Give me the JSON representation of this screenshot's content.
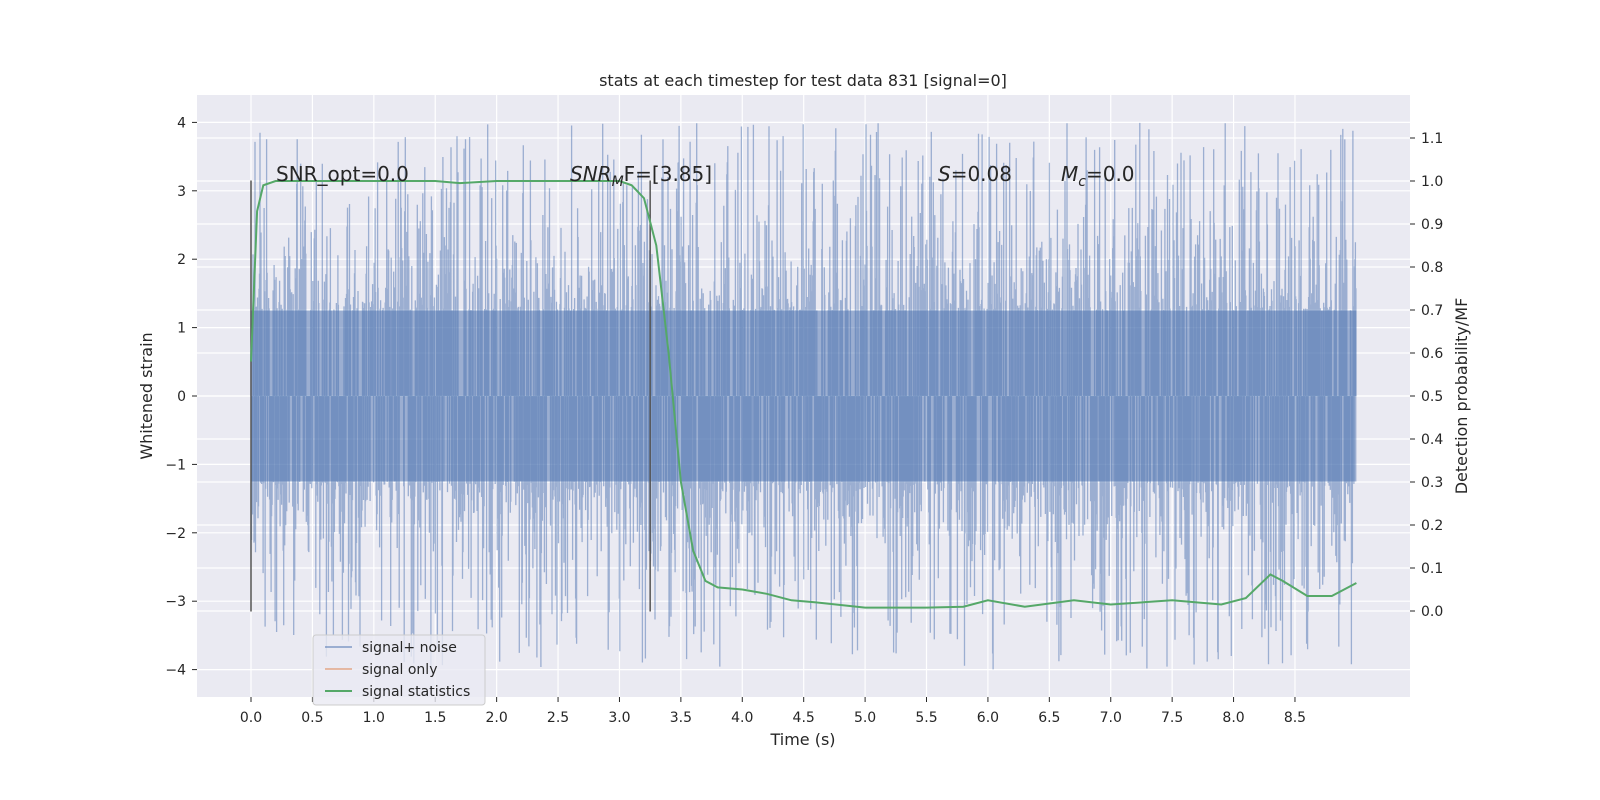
{
  "chart_data": {
    "type": "line",
    "title": "stats at each timestep for test data 831 [signal=0]",
    "xlabel": "Time (s)",
    "ylabel": "Whitened strain",
    "y2label": "Detection probability/MF",
    "xlim": [
      -0.45,
      9.45
    ],
    "ylim": [
      -4.35,
      4.4
    ],
    "y2lim": [
      -0.2,
      1.2
    ],
    "xticks": [
      "0.0",
      "0.5",
      "1.0",
      "1.5",
      "2.0",
      "2.5",
      "3.0",
      "3.5",
      "4.0",
      "4.5",
      "5.0",
      "5.5",
      "6.0",
      "6.5",
      "7.0",
      "7.5",
      "8.0",
      "8.5"
    ],
    "yticks": [
      "4",
      "3",
      "2",
      "1",
      "0",
      "−1",
      "−2",
      "−3",
      "−4"
    ],
    "y2ticks": [
      "0.0",
      "0.1",
      "0.2",
      "0.3",
      "0.4",
      "0.5",
      "0.6",
      "0.7",
      "0.8",
      "0.9",
      "1.0",
      "1.1"
    ],
    "grid": true,
    "legend": {
      "placement": "lower-left",
      "entries": [
        "signal+ noise",
        "signal only",
        "signal statistics"
      ]
    },
    "colors": {
      "noise": "#4c72b0",
      "signal": "#dd8452",
      "stats": "#55a868",
      "bg": "#eaeaf2"
    },
    "annotations": {
      "snr_opt": "SNR_opt=0.0",
      "snr_mf_base": "SNR",
      "snr_mf_sub": "M",
      "snr_mf_rest": "F=[3.85]",
      "s_var": "S",
      "s_rest": "=0.08",
      "mc_var": "M",
      "mc_sub": "c",
      "mc_rest": "=0.0"
    },
    "vlines": {
      "x": [
        0.0,
        3.25
      ],
      "ymin": -3.15,
      "ymax": 3.15
    },
    "noise": {
      "t_start": 0.0,
      "t_end": 9.0,
      "samples": 2200,
      "core_amplitude": 1.25,
      "spike_max": 4.0
    },
    "stats_series": {
      "name": "signal statistics",
      "x": [
        0,
        0.05,
        0.1,
        0.2,
        0.5,
        1.0,
        1.5,
        1.7,
        2.0,
        2.5,
        3.0,
        3.1,
        3.2,
        3.3,
        3.4,
        3.5,
        3.6,
        3.7,
        3.8,
        4.0,
        4.2,
        4.4,
        4.6,
        5.0,
        5.5,
        5.8,
        6.0,
        6.3,
        6.7,
        7.0,
        7.5,
        7.7,
        7.9,
        8.1,
        8.3,
        8.4,
        8.6,
        8.8,
        9.0
      ],
      "y": [
        0.58,
        0.93,
        0.99,
        1.0,
        1.0,
        1.0,
        1.0,
        0.995,
        1.0,
        1.0,
        1.0,
        0.99,
        0.96,
        0.85,
        0.6,
        0.3,
        0.14,
        0.07,
        0.055,
        0.05,
        0.04,
        0.025,
        0.02,
        0.008,
        0.008,
        0.01,
        0.025,
        0.01,
        0.025,
        0.015,
        0.025,
        0.02,
        0.015,
        0.03,
        0.085,
        0.07,
        0.035,
        0.035,
        0.065
      ]
    }
  }
}
